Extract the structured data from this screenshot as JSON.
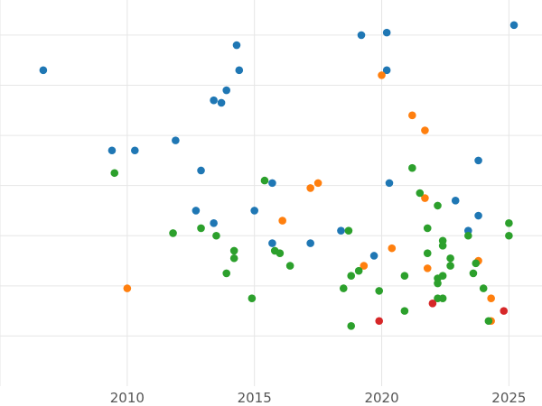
{
  "chart_data": {
    "type": "scatter",
    "title": "",
    "xlabel": "",
    "ylabel": "",
    "xlim": [
      2005,
      2026.3
    ],
    "ylim": [
      -1.0,
      6.7
    ],
    "x_ticks": [
      2010,
      2015,
      2020,
      2025
    ],
    "y_grid": [
      0,
      1,
      2,
      3,
      4,
      5,
      6
    ],
    "grid": true,
    "legend": "none",
    "series": [
      {
        "color": "#1f77b4",
        "points": [
          [
            2006.7,
            5.3
          ],
          [
            2009.4,
            3.7
          ],
          [
            2010.3,
            3.7
          ],
          [
            2011.9,
            3.9
          ],
          [
            2012.7,
            2.5
          ],
          [
            2012.9,
            3.3
          ],
          [
            2013.4,
            4.7
          ],
          [
            2013.4,
            2.25
          ],
          [
            2013.7,
            4.65
          ],
          [
            2013.9,
            4.9
          ],
          [
            2014.3,
            5.8
          ],
          [
            2014.4,
            5.3
          ],
          [
            2015.0,
            2.5
          ],
          [
            2015.7,
            3.05
          ],
          [
            2015.7,
            1.85
          ],
          [
            2017.2,
            1.85
          ],
          [
            2018.4,
            2.1
          ],
          [
            2019.2,
            6.0
          ],
          [
            2019.7,
            1.6
          ],
          [
            2020.2,
            6.05
          ],
          [
            2020.2,
            5.3
          ],
          [
            2020.3,
            3.05
          ],
          [
            2022.9,
            2.7
          ],
          [
            2023.4,
            2.1
          ],
          [
            2023.8,
            3.5
          ],
          [
            2023.8,
            2.4
          ],
          [
            2025.2,
            6.2
          ]
        ]
      },
      {
        "color": "#ff7f0e",
        "points": [
          [
            2010.0,
            0.95
          ],
          [
            2016.1,
            2.3
          ],
          [
            2017.2,
            2.95
          ],
          [
            2017.5,
            3.05
          ],
          [
            2019.3,
            1.4
          ],
          [
            2020.0,
            5.2
          ],
          [
            2020.4,
            1.75
          ],
          [
            2021.2,
            4.4
          ],
          [
            2021.7,
            4.1
          ],
          [
            2021.7,
            2.75
          ],
          [
            2021.8,
            1.35
          ],
          [
            2023.8,
            1.5
          ],
          [
            2024.3,
            0.75
          ],
          [
            2024.3,
            0.3
          ]
        ]
      },
      {
        "color": "#2ca02c",
        "points": [
          [
            2009.5,
            3.25
          ],
          [
            2011.8,
            2.05
          ],
          [
            2012.9,
            2.15
          ],
          [
            2013.5,
            2.0
          ],
          [
            2013.9,
            1.25
          ],
          [
            2014.2,
            1.7
          ],
          [
            2014.2,
            1.55
          ],
          [
            2014.9,
            0.75
          ],
          [
            2015.4,
            3.1
          ],
          [
            2015.8,
            1.7
          ],
          [
            2016.0,
            1.65
          ],
          [
            2016.4,
            1.4
          ],
          [
            2018.5,
            0.95
          ],
          [
            2018.7,
            2.1
          ],
          [
            2018.8,
            1.2
          ],
          [
            2018.8,
            0.2
          ],
          [
            2019.1,
            1.3
          ],
          [
            2019.9,
            0.9
          ],
          [
            2020.9,
            1.2
          ],
          [
            2020.9,
            0.5
          ],
          [
            2021.2,
            3.35
          ],
          [
            2021.5,
            2.85
          ],
          [
            2021.8,
            2.15
          ],
          [
            2021.8,
            1.65
          ],
          [
            2022.2,
            2.6
          ],
          [
            2022.2,
            1.15
          ],
          [
            2022.2,
            1.05
          ],
          [
            2022.2,
            0.75
          ],
          [
            2022.4,
            1.9
          ],
          [
            2022.4,
            1.8
          ],
          [
            2022.4,
            1.2
          ],
          [
            2022.4,
            0.75
          ],
          [
            2022.7,
            1.55
          ],
          [
            2022.7,
            1.4
          ],
          [
            2023.4,
            2.0
          ],
          [
            2023.6,
            1.25
          ],
          [
            2023.7,
            1.45
          ],
          [
            2024.0,
            0.95
          ],
          [
            2024.2,
            0.3
          ],
          [
            2025.0,
            2.25
          ],
          [
            2025.0,
            2.0
          ]
        ]
      },
      {
        "color": "#d62728",
        "points": [
          [
            2019.9,
            0.3
          ],
          [
            2022.0,
            0.65
          ],
          [
            2024.8,
            0.5
          ]
        ]
      }
    ]
  }
}
